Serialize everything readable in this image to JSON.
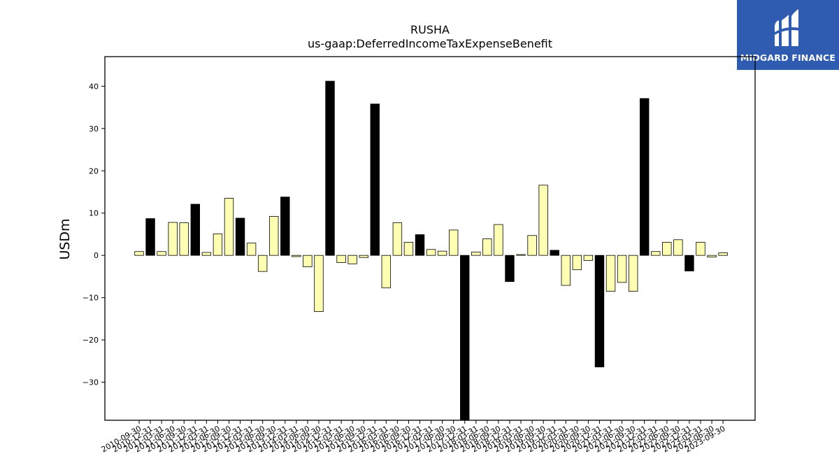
{
  "logo": {
    "text": "MIDGARD FINANCE",
    "bg": "#2f5cb0"
  },
  "chart_data": {
    "type": "bar",
    "title": "RUSHA",
    "subtitle": "us-gaap:DeferredIncomeTaxExpenseBenefit",
    "ylabel": "USDm",
    "xlabel": "",
    "ylim": [
      -39,
      47
    ],
    "yticks": [
      -30,
      -20,
      -10,
      0,
      10,
      20,
      30,
      40
    ],
    "colors": {
      "q4": "#000000",
      "other": "#ffffb3",
      "edge": "#000000"
    },
    "grid": false,
    "categories": [
      "2010-09-30",
      "2010-12-31",
      "2011-03-31",
      "2011-06-30",
      "2011-09-30",
      "2011-12-31",
      "2012-03-31",
      "2012-06-30",
      "2012-09-30",
      "2012-12-31",
      "2013-03-31",
      "2013-06-30",
      "2013-09-30",
      "2013-12-31",
      "2014-03-31",
      "2014-06-30",
      "2014-09-30",
      "2014-12-31",
      "2015-03-31",
      "2015-06-30",
      "2015-09-30",
      "2015-12-31",
      "2016-03-31",
      "2016-06-30",
      "2016-09-30",
      "2016-12-31",
      "2017-03-31",
      "2017-06-30",
      "2017-09-30",
      "2017-12-31",
      "2018-03-31",
      "2018-06-30",
      "2018-09-30",
      "2018-12-31",
      "2019-03-31",
      "2019-06-30",
      "2019-09-30",
      "2019-12-31",
      "2020-03-31",
      "2020-06-30",
      "2020-09-30",
      "2020-12-31",
      "2021-03-31",
      "2021-06-30",
      "2021-09-30",
      "2021-12-31",
      "2022-03-31",
      "2022-06-30",
      "2022-09-30",
      "2022-12-31",
      "2023-03-31",
      "2023-06-30",
      "2023-09-30"
    ],
    "values": [
      0.9,
      8.7,
      0.9,
      7.8,
      7.7,
      12.1,
      0.7,
      5.1,
      13.5,
      8.8,
      2.9,
      -3.8,
      9.2,
      13.8,
      -0.3,
      -2.7,
      -13.3,
      41.2,
      -1.7,
      -2.0,
      -0.5,
      35.8,
      -7.7,
      7.7,
      3.1,
      4.9,
      1.4,
      1.0,
      6.0,
      -39.0,
      0.8,
      3.9,
      7.3,
      -6.2,
      0.2,
      4.7,
      16.6,
      1.2,
      -7.1,
      -3.4,
      -1.2,
      -26.4,
      -8.5,
      -6.4,
      -8.5,
      37.1,
      0.9,
      3.1,
      3.7,
      -3.7,
      3.1,
      -0.4,
      0.6
    ]
  }
}
